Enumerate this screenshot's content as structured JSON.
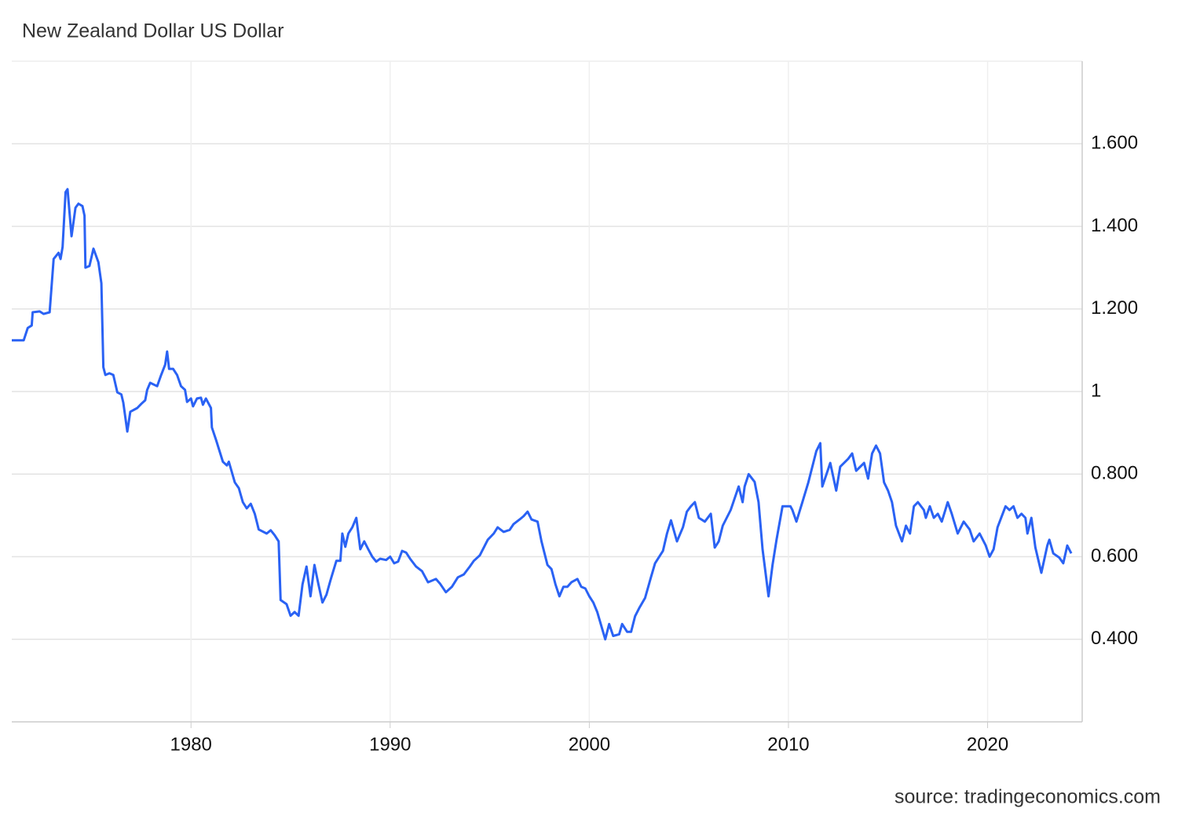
{
  "chart_data": {
    "type": "line",
    "title": "New Zealand Dollar US Dollar",
    "source": "source: tradingeconomics.com",
    "xlim": [
      1971,
      2024.75
    ],
    "xticks": [
      1980,
      1990,
      2000,
      2010,
      2020
    ],
    "ylim": [
      0.2,
      1.8
    ],
    "yticks": [
      {
        "value": 0.4,
        "label": "0.400"
      },
      {
        "value": 0.6,
        "label": "0.600"
      },
      {
        "value": 0.8,
        "label": "0.800"
      },
      1,
      {
        "value": 1.2,
        "label": "1.200"
      },
      {
        "value": 1.4,
        "label": "1.400"
      },
      {
        "value": 1.6,
        "label": "1.600"
      }
    ],
    "grid": true,
    "series": [
      {
        "name": "New Zealand Dollar US Dollar",
        "color": "#2a62f4",
        "x": [
          1971.0,
          1971.6,
          1971.8,
          1972.0,
          1972.05,
          1972.4,
          1972.6,
          1972.9,
          1973.1,
          1973.35,
          1973.45,
          1973.55,
          1973.7,
          1973.8,
          1974.0,
          1974.2,
          1974.35,
          1974.55,
          1974.65,
          1974.7,
          1974.9,
          1975.1,
          1975.35,
          1975.5,
          1975.6,
          1975.7,
          1975.9,
          1976.1,
          1976.3,
          1976.5,
          1976.6,
          1976.8,
          1976.95,
          1977.3,
          1977.5,
          1977.7,
          1977.8,
          1977.95,
          1978.3,
          1978.5,
          1978.7,
          1978.8,
          1978.9,
          1979.1,
          1979.3,
          1979.5,
          1979.7,
          1979.8,
          1980.0,
          1980.1,
          1980.3,
          1980.5,
          1980.6,
          1980.75,
          1981.0,
          1981.05,
          1981.25,
          1981.6,
          1981.8,
          1981.9,
          1982.2,
          1982.4,
          1982.6,
          1982.8,
          1983.0,
          1983.2,
          1983.4,
          1983.8,
          1984.0,
          1984.2,
          1984.4,
          1984.5,
          1984.8,
          1985.0,
          1985.2,
          1985.4,
          1985.6,
          1985.8,
          1986.0,
          1986.2,
          1986.4,
          1986.6,
          1986.8,
          1987.0,
          1987.3,
          1987.5,
          1987.6,
          1987.75,
          1987.9,
          1988.1,
          1988.3,
          1988.5,
          1988.7,
          1988.9,
          1989.1,
          1989.3,
          1989.5,
          1989.8,
          1990.0,
          1990.2,
          1990.4,
          1990.6,
          1990.8,
          1991.0,
          1991.3,
          1991.6,
          1991.9,
          1992.3,
          1992.5,
          1992.8,
          1993.1,
          1993.4,
          1993.7,
          1994.0,
          1994.2,
          1994.5,
          1994.9,
          1995.2,
          1995.4,
          1995.7,
          1996.0,
          1996.2,
          1996.5,
          1996.7,
          1996.9,
          1997.1,
          1997.4,
          1997.6,
          1997.9,
          1998.1,
          1998.3,
          1998.5,
          1998.7,
          1998.9,
          1999.1,
          1999.4,
          1999.6,
          1999.8,
          2000.0,
          2000.2,
          2000.4,
          2000.8,
          2001.0,
          2001.2,
          2001.5,
          2001.65,
          2001.9,
          2002.1,
          2002.3,
          2002.5,
          2002.8,
          2003.1,
          2003.3,
          2003.7,
          2003.9,
          2004.1,
          2004.4,
          2004.7,
          2004.9,
          2005.1,
          2005.3,
          2005.5,
          2005.8,
          2006.1,
          2006.3,
          2006.5,
          2006.7,
          2007.1,
          2007.5,
          2007.7,
          2007.8,
          2008.0,
          2008.3,
          2008.5,
          2008.7,
          2009.0,
          2009.2,
          2009.4,
          2009.7,
          2010.1,
          2010.2,
          2010.4,
          2010.7,
          2011.0,
          2011.2,
          2011.4,
          2011.6,
          2011.7,
          2011.9,
          2012.1,
          2012.4,
          2012.6,
          2013.0,
          2013.2,
          2013.4,
          2013.8,
          2014.0,
          2014.2,
          2014.4,
          2014.6,
          2014.8,
          2015.0,
          2015.2,
          2015.4,
          2015.7,
          2015.9,
          2016.1,
          2016.3,
          2016.5,
          2016.8,
          2016.9,
          2017.1,
          2017.3,
          2017.5,
          2017.7,
          2018.0,
          2018.2,
          2018.5,
          2018.8,
          2019.1,
          2019.3,
          2019.6,
          2019.9,
          2020.1,
          2020.3,
          2020.5,
          2020.9,
          2021.1,
          2021.3,
          2021.5,
          2021.7,
          2021.9,
          2022.0,
          2022.2,
          2022.4,
          2022.7,
          2023.0,
          2023.1,
          2023.3,
          2023.6,
          2023.8,
          2024.0,
          2024.2
        ],
        "values": [
          1.124,
          1.124,
          1.154,
          1.16,
          1.192,
          1.194,
          1.188,
          1.192,
          1.321,
          1.336,
          1.321,
          1.35,
          1.483,
          1.49,
          1.376,
          1.445,
          1.455,
          1.449,
          1.426,
          1.3,
          1.304,
          1.346,
          1.313,
          1.262,
          1.059,
          1.04,
          1.044,
          1.04,
          0.998,
          0.993,
          0.973,
          0.903,
          0.951,
          0.96,
          0.97,
          0.979,
          1.004,
          1.021,
          1.013,
          1.04,
          1.065,
          1.097,
          1.055,
          1.055,
          1.04,
          1.013,
          1.004,
          0.975,
          0.983,
          0.964,
          0.983,
          0.985,
          0.968,
          0.983,
          0.96,
          0.913,
          0.884,
          0.83,
          0.821,
          0.83,
          0.78,
          0.766,
          0.732,
          0.717,
          0.728,
          0.704,
          0.666,
          0.656,
          0.664,
          0.652,
          0.637,
          0.495,
          0.485,
          0.457,
          0.466,
          0.457,
          0.533,
          0.576,
          0.504,
          0.58,
          0.533,
          0.489,
          0.508,
          0.542,
          0.59,
          0.59,
          0.656,
          0.624,
          0.656,
          0.671,
          0.694,
          0.618,
          0.637,
          0.618,
          0.6,
          0.588,
          0.595,
          0.592,
          0.6,
          0.584,
          0.588,
          0.614,
          0.61,
          0.595,
          0.576,
          0.565,
          0.538,
          0.546,
          0.535,
          0.514,
          0.527,
          0.55,
          0.557,
          0.576,
          0.59,
          0.603,
          0.641,
          0.656,
          0.671,
          0.66,
          0.665,
          0.679,
          0.69,
          0.698,
          0.709,
          0.69,
          0.685,
          0.637,
          0.58,
          0.57,
          0.533,
          0.504,
          0.527,
          0.527,
          0.538,
          0.546,
          0.527,
          0.523,
          0.504,
          0.489,
          0.466,
          0.4,
          0.437,
          0.408,
          0.412,
          0.437,
          0.418,
          0.418,
          0.456,
          0.475,
          0.5,
          0.551,
          0.584,
          0.614,
          0.656,
          0.688,
          0.637,
          0.671,
          0.709,
          0.722,
          0.732,
          0.694,
          0.685,
          0.704,
          0.622,
          0.637,
          0.675,
          0.713,
          0.77,
          0.732,
          0.77,
          0.8,
          0.781,
          0.732,
          0.618,
          0.504,
          0.58,
          0.641,
          0.722,
          0.722,
          0.713,
          0.685,
          0.732,
          0.78,
          0.818,
          0.856,
          0.875,
          0.77,
          0.798,
          0.827,
          0.76,
          0.818,
          0.837,
          0.85,
          0.808,
          0.827,
          0.789,
          0.85,
          0.869,
          0.85,
          0.78,
          0.76,
          0.732,
          0.675,
          0.637,
          0.675,
          0.656,
          0.722,
          0.732,
          0.713,
          0.694,
          0.722,
          0.694,
          0.704,
          0.685,
          0.732,
          0.704,
          0.656,
          0.685,
          0.666,
          0.637,
          0.656,
          0.628,
          0.6,
          0.618,
          0.671,
          0.722,
          0.713,
          0.722,
          0.694,
          0.704,
          0.694,
          0.656,
          0.694,
          0.622,
          0.561,
          0.627,
          0.641,
          0.608,
          0.598,
          0.584,
          0.627,
          0.608
        ]
      }
    ]
  }
}
